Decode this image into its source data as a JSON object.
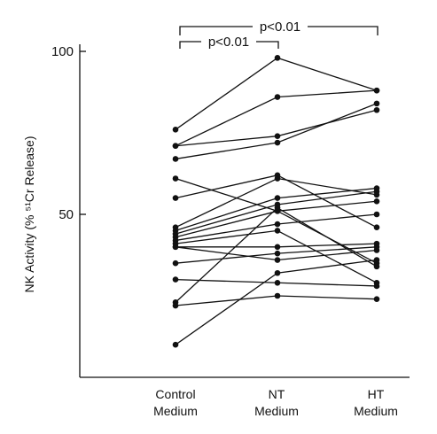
{
  "chart_data": {
    "type": "line",
    "ylabel": "NK Activity (% ⁵¹Cr Release)",
    "yticks": [
      "50",
      "100"
    ],
    "ylim": [
      0,
      100
    ],
    "categories": [
      {
        "line1": "Control",
        "line2": "Medium"
      },
      {
        "line1": "NT",
        "line2": "Medium"
      },
      {
        "line1": "HT",
        "line2": "Medium"
      }
    ],
    "significance": [
      {
        "label": "p<0.01",
        "from": 0,
        "to": 2
      },
      {
        "label": "p<0.01",
        "from": 0,
        "to": 1
      }
    ],
    "series": [
      {
        "values": [
          76,
          98,
          88
        ]
      },
      {
        "values": [
          71,
          86,
          88
        ]
      },
      {
        "values": [
          71,
          74,
          82
        ]
      },
      {
        "values": [
          67,
          72,
          84
        ]
      },
      {
        "values": [
          61,
          51,
          35
        ]
      },
      {
        "values": [
          55,
          62,
          46
        ]
      },
      {
        "values": [
          46,
          61,
          56
        ]
      },
      {
        "values": [
          45,
          55,
          58
        ]
      },
      {
        "values": [
          44,
          53,
          57
        ]
      },
      {
        "values": [
          43,
          51,
          54
        ]
      },
      {
        "values": [
          42,
          47,
          50
        ]
      },
      {
        "values": [
          41,
          45,
          29
        ]
      },
      {
        "values": [
          40,
          40,
          41
        ]
      },
      {
        "values": [
          40,
          36,
          39
        ]
      },
      {
        "values": [
          35,
          38,
          40
        ]
      },
      {
        "values": [
          30,
          29,
          28
        ]
      },
      {
        "values": [
          23,
          52,
          34
        ]
      },
      {
        "values": [
          22,
          25,
          24
        ]
      },
      {
        "values": [
          10,
          32,
          36
        ]
      }
    ]
  }
}
